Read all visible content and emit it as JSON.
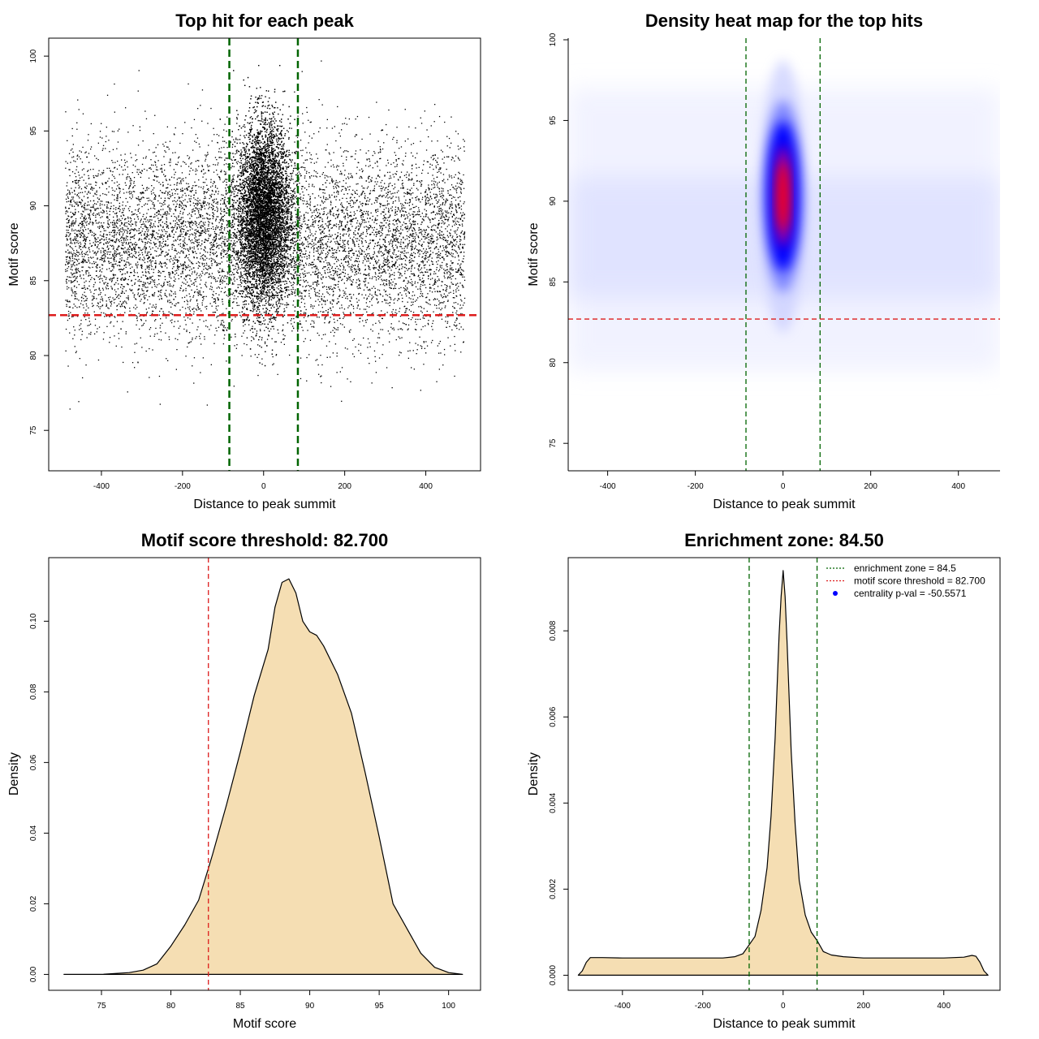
{
  "colors": {
    "green_line": "#006400",
    "red_line": "#dd1c1c",
    "density_fill": "#f5deb3",
    "heat_low": "#ffffff",
    "heat_mid": "#0000ff",
    "heat_high": "#ff0000",
    "points": "#000000"
  },
  "chart_data": [
    {
      "type": "scatter",
      "title": "Top hit for each peak",
      "xlabel": "Distance to peak summit",
      "ylabel": "Motif score",
      "xlim": [
        -530,
        535
      ],
      "ylim": [
        72.3,
        101.2
      ],
      "xticks": [
        -400,
        -200,
        0,
        200,
        400
      ],
      "xtick_labels": [
        "-400",
        "-200",
        "0",
        "200",
        "400"
      ],
      "yticks": [
        75,
        80,
        85,
        90,
        95,
        100
      ],
      "ytick_labels": [
        "75",
        "80",
        "85",
        "90",
        "95",
        "100"
      ],
      "vlines": [
        -84.5,
        84.5
      ],
      "hline": 82.7,
      "point_distribution": {
        "background_x_range": [
          -490,
          495
        ],
        "background_score_mean": 87.6,
        "background_score_sd": 3.2,
        "central_score_mean": 89.5,
        "central_score_sd": 3.0,
        "central_x_sd": 32,
        "background_count": 9000,
        "central_count": 11000
      }
    },
    {
      "type": "heatmap",
      "title": "Density heat map for the top hits",
      "xlabel": "Distance to peak summit",
      "ylabel": "Motif score",
      "xlim": [
        -490,
        495
      ],
      "ylim": [
        73.3,
        100.1
      ],
      "xticks": [
        -400,
        -200,
        0,
        200,
        400
      ],
      "xtick_labels": [
        "-400",
        "-200",
        "0",
        "200",
        "400"
      ],
      "yticks": [
        75,
        80,
        85,
        90,
        95,
        100
      ],
      "ytick_labels": [
        "75",
        "80",
        "85",
        "90",
        "95",
        "100"
      ],
      "vlines": [
        -84.5,
        84.5
      ],
      "hline": 82.7,
      "peak_center": [
        0,
        90.3
      ],
      "color_scale": [
        "white",
        "blue",
        "red"
      ]
    },
    {
      "type": "area",
      "title": "Motif score threshold: 82.700",
      "xlabel": "Motif score",
      "ylabel": "Density",
      "xlim": [
        71.2,
        102.3
      ],
      "ylim": [
        -0.0045,
        0.118
      ],
      "xticks": [
        75,
        80,
        85,
        90,
        95,
        100
      ],
      "xtick_labels": [
        "75",
        "80",
        "85",
        "90",
        "95",
        "100"
      ],
      "yticks": [
        0,
        0.02,
        0.04,
        0.06,
        0.08,
        0.1
      ],
      "ytick_labels": [
        "0.00",
        "0.02",
        "0.04",
        "0.06",
        "0.08",
        "0.10"
      ],
      "vline": 82.7,
      "x": [
        72.3,
        75,
        77,
        78,
        79,
        80,
        81,
        82,
        82.7,
        83,
        84,
        85,
        86,
        87,
        87.5,
        88,
        88.5,
        89,
        89.5,
        90,
        90.5,
        91,
        92,
        93,
        94,
        95,
        96,
        97,
        98,
        99,
        100,
        101
      ],
      "y": [
        0.0,
        0.0,
        0.0005,
        0.0012,
        0.003,
        0.008,
        0.014,
        0.021,
        0.03,
        0.034,
        0.048,
        0.063,
        0.079,
        0.092,
        0.104,
        0.111,
        0.112,
        0.108,
        0.1,
        0.097,
        0.096,
        0.093,
        0.085,
        0.074,
        0.057,
        0.039,
        0.02,
        0.013,
        0.006,
        0.002,
        0.0005,
        0.0
      ]
    },
    {
      "type": "area",
      "title": "Enrichment zone: 84.50",
      "xlabel": "Distance to peak summit",
      "ylabel": "Density",
      "xlim": [
        -535,
        540
      ],
      "ylim": [
        -0.00035,
        0.0097
      ],
      "xticks": [
        -400,
        -200,
        0,
        200,
        400
      ],
      "xtick_labels": [
        "-400",
        "-200",
        "0",
        "200",
        "400"
      ],
      "yticks": [
        0,
        0.002,
        0.004,
        0.006,
        0.008
      ],
      "ytick_labels": [
        "0.000",
        "0.002",
        "0.004",
        "0.006",
        "0.008"
      ],
      "vlines": [
        -84.5,
        84.5
      ],
      "x": [
        -510,
        -500,
        -490,
        -480,
        -450,
        -400,
        -350,
        -300,
        -250,
        -200,
        -150,
        -120,
        -100,
        -85,
        -70,
        -55,
        -40,
        -30,
        -20,
        -10,
        -5,
        0,
        5,
        10,
        20,
        30,
        40,
        55,
        70,
        85,
        100,
        120,
        150,
        200,
        250,
        300,
        350,
        400,
        450,
        470,
        480,
        490,
        500,
        510
      ],
      "y": [
        0.0,
        0.0001,
        0.0003,
        0.00041,
        0.00041,
        0.0004,
        0.0004,
        0.0004,
        0.0004,
        0.0004,
        0.0004,
        0.00043,
        0.0005,
        0.0007,
        0.0009,
        0.0015,
        0.0025,
        0.0037,
        0.0055,
        0.0079,
        0.0088,
        0.0094,
        0.0088,
        0.0077,
        0.0052,
        0.0035,
        0.0022,
        0.0014,
        0.001,
        0.0008,
        0.00055,
        0.00047,
        0.00043,
        0.0004,
        0.0004,
        0.0004,
        0.0004,
        0.0004,
        0.00042,
        0.00046,
        0.00044,
        0.0003,
        0.0001,
        0.0
      ],
      "legend": {
        "position": "top-right",
        "entries": [
          {
            "label": "enrichment zone = 84.5",
            "marker": "dotted-line",
            "color": "#006400"
          },
          {
            "label": "motif score threshold = 82.700",
            "marker": "dotted-line",
            "color": "#dd1c1c"
          },
          {
            "label": "centrality p-val = -50.5571",
            "marker": "point",
            "color": "#0000ff"
          }
        ]
      }
    }
  ]
}
